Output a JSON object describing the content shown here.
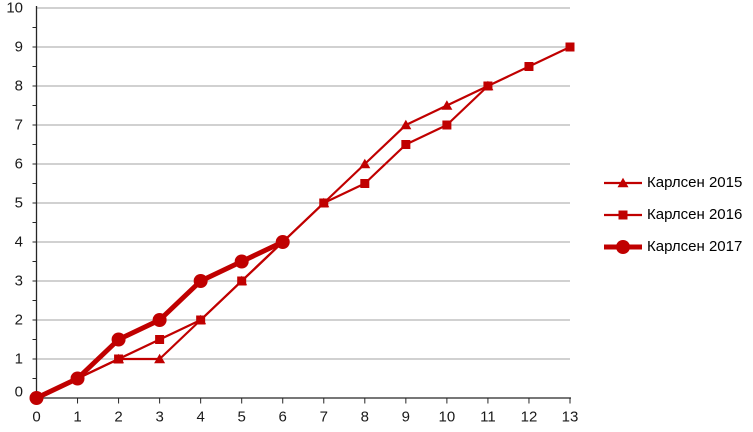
{
  "chart_data": {
    "type": "line",
    "title": "",
    "xlabel": "",
    "ylabel": "",
    "xlim": [
      0,
      13
    ],
    "ylim": [
      0,
      10
    ],
    "x_ticks": [
      0,
      1,
      2,
      3,
      4,
      5,
      6,
      7,
      8,
      9,
      10,
      11,
      12,
      13
    ],
    "y_ticks": [
      0,
      1,
      2,
      3,
      4,
      5,
      6,
      7,
      8,
      9,
      10
    ],
    "grid": "horizontal-only",
    "legend_position": "right",
    "series": [
      {
        "id": "karlsen-2015",
        "name": "Карлсен 2015",
        "marker": "triangle",
        "line_width": 2.2,
        "x": [
          0,
          1,
          2,
          3,
          4,
          5,
          6,
          7,
          8,
          9,
          10,
          11
        ],
        "values": [
          0,
          0.5,
          1,
          1,
          2,
          3,
          4,
          5,
          6,
          7,
          7.5,
          8
        ]
      },
      {
        "id": "karlsen-2016",
        "name": "Карлсен 2016",
        "marker": "square",
        "line_width": 2.2,
        "x": [
          0,
          1,
          2,
          3,
          4,
          5,
          6,
          7,
          8,
          9,
          10,
          11,
          12,
          13
        ],
        "values": [
          0,
          0.5,
          1,
          1.5,
          2,
          3,
          4,
          5,
          5.5,
          6.5,
          7,
          8,
          8.5,
          9
        ]
      },
      {
        "id": "karlsen-2017",
        "name": "Карлсен 2017",
        "marker": "circle",
        "line_width": 5,
        "x": [
          0,
          1,
          2,
          3,
          4,
          5,
          6
        ],
        "values": [
          0,
          0.5,
          1.5,
          2,
          3,
          3.5,
          4
        ]
      }
    ],
    "colors": {
      "series": "#C00000",
      "grid": "#A3A3A3",
      "axis": "#262626",
      "text": "#1a1a1a",
      "background": "#FFFFFF"
    }
  }
}
